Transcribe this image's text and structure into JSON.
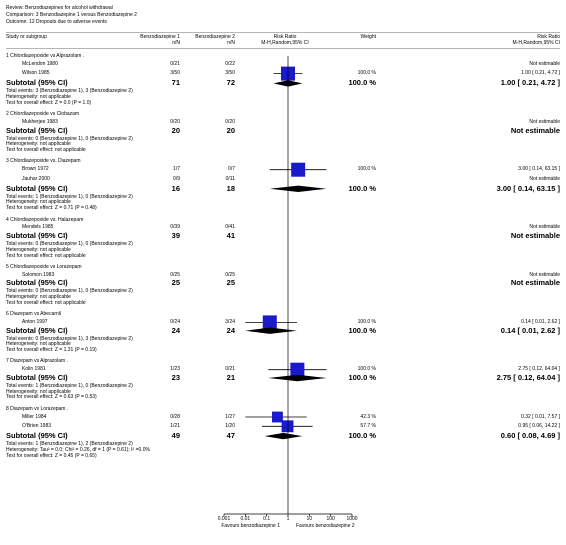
{
  "review": {
    "review_line": "Review:  Benzodiazepines for alcohol withdrawal",
    "comparison_line": "Comparison:  3 Benzodiazepine 1 versus Benzodiazepine 2",
    "outcome_line": "Outcome:  12 Dropouts due to adverse events"
  },
  "headers": {
    "study": "Study or subgroup",
    "g1": "Benzodiazepine 1",
    "g1_sub": "n/N",
    "g2": "Benzodiazepine 2",
    "g2_sub": "n/N",
    "rr": "Risk Ratio",
    "rr_sub": "M-H,Random,95% CI",
    "weight": "Weight",
    "rr2": "Risk Ratio",
    "rr2_sub": "M-H,Random,95% CI"
  },
  "colors": {
    "box": "#1a1acc",
    "line": "#000000",
    "rule": "#b5b5b5"
  },
  "groups": [
    {
      "title": "1 Chlordiazepoxide vs Alprazolam .",
      "studies": [
        {
          "name": "McLendon 1980",
          "n1": "0/21",
          "n2": "0/22",
          "weight": "",
          "rr_text": "Not estimable"
        },
        {
          "name": "Wilson 1985",
          "n1": "3/50",
          "n2": "3/50",
          "weight": "100.0 %",
          "rr_text": "1.00 [ 0.21, 4.72 ]"
        }
      ],
      "subtotal": {
        "label": "Subtotal (95% CI)",
        "n1": "71",
        "n2": "72",
        "weight": "100.0 %",
        "rr_text": "1.00 [ 0.21, 4.72 ]"
      },
      "notes": [
        "Total events: 3 (Benzodiazepine 1), 3 (Benzodiazepine 2)",
        "Heterogeneity: not applicable",
        "Test for overall effect: Z = 0.0  (P = 1.0)"
      ]
    },
    {
      "title": "2 Chlordiazepoxide vs Clobazam",
      "studies": [
        {
          "name": "Mukherjee 1983",
          "n1": "0/20",
          "n2": "0/20",
          "weight": "",
          "rr_text": "Not estimable"
        }
      ],
      "subtotal": {
        "label": "Subtotal (95% CI)",
        "n1": "20",
        "n2": "20",
        "weight": "",
        "rr_text": "Not estimable"
      },
      "notes": [
        "Total events: 0 (Benzodiazepine 1), 0 (Benzodiazepine 2)",
        "Heterogeneity: not applicable",
        "Test for overall effect: not applicable"
      ]
    },
    {
      "title": "3 Chlordiazepoxide vs. Diazepam",
      "studies": [
        {
          "name": "Brown 1972",
          "n1": "1/7",
          "n2": "0/7",
          "weight": "100.0 %",
          "rr_text": "3.00 [ 0.14, 63.15 ]"
        },
        {
          "name": "Jauhar 2000",
          "n1": "0/9",
          "n2": "0/11",
          "weight": "",
          "rr_text": "Not estimable"
        }
      ],
      "subtotal": {
        "label": "Subtotal (95% CI)",
        "n1": "16",
        "n2": "18",
        "weight": "100.0 %",
        "rr_text": "3.00 [ 0.14, 63.15 ]"
      },
      "notes": [
        "Total events: 1 (Benzodiazepine 1), 0 (Benzodiazepine 2)",
        "Heterogeneity: not applicable",
        "Test for overall effect: Z = 0.71  (P = 0.48)"
      ]
    },
    {
      "title": "4 Chlordiazepoxide vs. Halazepam",
      "studies": [
        {
          "name": "Mendels 1985",
          "n1": "0/39",
          "n2": "0/41",
          "weight": "",
          "rr_text": "Not estimable"
        }
      ],
      "subtotal": {
        "label": "Subtotal (95% CI)",
        "n1": "39",
        "n2": "41",
        "weight": "",
        "rr_text": "Not estimable"
      },
      "notes": [
        "Total events: 0 (Benzodiazepine 1), 0 (Benzodiazepine 2)",
        "Heterogeneity: not applicable",
        "Test for overall effect: not applicable"
      ]
    },
    {
      "title": "5 Chlordiazepoxide vs Lorazepam",
      "studies": [
        {
          "name": "Solomon 1983",
          "n1": "0/25",
          "n2": "0/25",
          "weight": "",
          "rr_text": "Not estimable"
        }
      ],
      "subtotal": {
        "label": "Subtotal (95% CI)",
        "n1": "25",
        "n2": "25",
        "weight": "",
        "rr_text": "Not estimable"
      },
      "notes": [
        "Total events: 0 (Benzodiazepine 1), 0 (Benzodiazepine 2)",
        "Heterogeneity: not applicable",
        "Test for overall effect: not applicable"
      ]
    },
    {
      "title": "6 Diazepam vs Abecarnil",
      "studies": [
        {
          "name": "Anton 1997",
          "n1": "0/24",
          "n2": "3/24",
          "weight": "100.0 %",
          "rr_text": "0.14 [ 0.01, 2.62 ]"
        }
      ],
      "subtotal": {
        "label": "Subtotal (95% CI)",
        "n1": "24",
        "n2": "24",
        "weight": "100.0 %",
        "rr_text": "0.14 [ 0.01, 2.62 ]"
      },
      "notes": [
        "Total events: 0 (Benzodiazepine 1), 3 (Benzodiazepine 2)",
        "Heterogeneity: not applicable",
        "Test for overall effect: Z = 1.31  (P = 0.19)"
      ]
    },
    {
      "title": "7 Diazepam vs Alprazolam .",
      "studies": [
        {
          "name": "Kolin 1981",
          "n1": "1/23",
          "n2": "0/21",
          "weight": "100.0 %",
          "rr_text": "2.75 [ 0.12, 64.04 ]"
        }
      ],
      "subtotal": {
        "label": "Subtotal (95% CI)",
        "n1": "23",
        "n2": "21",
        "weight": "100.0 %",
        "rr_text": "2.75 [ 0.12, 64.04 ]"
      },
      "notes": [
        "Total events: 1 (Benzodiazepine 1), 0 (Benzodiazepine 2)",
        "Heterogeneity: not applicable",
        "Test for overall effect: Z = 0.63  (P = 0.53)"
      ]
    },
    {
      "title": "8 Diazepam vs Lorazepam .",
      "studies": [
        {
          "name": "Miller 1984",
          "n1": "0/28",
          "n2": "1/27",
          "weight": "42.3 %",
          "rr_text": "0.32 [ 0.01, 7.57 ]"
        },
        {
          "name": "O'Brien 1983",
          "n1": "1/21",
          "n2": "1/20",
          "weight": "57.7 %",
          "rr_text": "0.95 [ 0.06, 14.22 ]"
        }
      ],
      "subtotal": {
        "label": "Subtotal (95% CI)",
        "n1": "49",
        "n2": "47",
        "weight": "100.0 %",
        "rr_text": "0.60 [ 0.08, 4.69 ]"
      },
      "notes": [
        "Total events: 1 (Benzodiazepine 1), 2 (Benzodiazepine 2)",
        "Heterogeneity: Tau² = 0.0; Chi² = 0.26, df = 1 (P = 0.61); I² =0.0%",
        "Test for overall effect: Z = 0.45  (P = 0.65)"
      ]
    }
  ],
  "axis": {
    "ticks": [
      "0.001",
      "0.01",
      "0.1",
      "1",
      "10",
      "100",
      "1000"
    ],
    "favours_left": "Favours benzodiazepine 1",
    "favours_right": "Favours benzodiazepine 2"
  },
  "chart_data": {
    "type": "forest",
    "scale": "log",
    "xlim": [
      0.001,
      1000
    ],
    "null_line": 1,
    "xlabel_left": "Favours benzodiazepine 1",
    "xlabel_right": "Favours benzodiazepine 2",
    "studies": [
      {
        "name": "McLendon 1980",
        "estimable": false
      },
      {
        "name": "Wilson 1985",
        "rr": 1.0,
        "lo": 0.21,
        "hi": 4.72,
        "weight": 100.0
      },
      {
        "name": "Mukherjee 1983",
        "estimable": false
      },
      {
        "name": "Brown 1972",
        "rr": 3.0,
        "lo": 0.14,
        "hi": 63.15,
        "weight": 100.0
      },
      {
        "name": "Jauhar 2000",
        "estimable": false
      },
      {
        "name": "Mendels 1985",
        "estimable": false
      },
      {
        "name": "Solomon 1983",
        "estimable": false
      },
      {
        "name": "Anton 1997",
        "rr": 0.14,
        "lo": 0.01,
        "hi": 2.62,
        "weight": 100.0
      },
      {
        "name": "Kolin 1981",
        "rr": 2.75,
        "lo": 0.12,
        "hi": 64.04,
        "weight": 100.0
      },
      {
        "name": "Miller 1984",
        "rr": 0.32,
        "lo": 0.01,
        "hi": 7.57,
        "weight": 42.3
      },
      {
        "name": "O'Brien 1983",
        "rr": 0.95,
        "lo": 0.06,
        "hi": 14.22,
        "weight": 57.7
      }
    ],
    "subtotals": [
      {
        "group": "1 Chlordiazepoxide vs Alprazolam .",
        "rr": 1.0,
        "lo": 0.21,
        "hi": 4.72
      },
      {
        "group": "2 Chlordiazepoxide vs Clobazam",
        "estimable": false
      },
      {
        "group": "3 Chlordiazepoxide vs. Diazepam",
        "rr": 3.0,
        "lo": 0.14,
        "hi": 63.15
      },
      {
        "group": "4 Chlordiazepoxide vs. Halazepam",
        "estimable": false
      },
      {
        "group": "5 Chlordiazepoxide vs Lorazepam",
        "estimable": false
      },
      {
        "group": "6 Diazepam vs Abecarnil",
        "rr": 0.14,
        "lo": 0.01,
        "hi": 2.62
      },
      {
        "group": "7 Diazepam vs Alprazolam .",
        "rr": 2.75,
        "lo": 0.12,
        "hi": 64.04
      },
      {
        "group": "8 Diazepam vs Lorazepam .",
        "rr": 0.6,
        "lo": 0.08,
        "hi": 4.69
      }
    ]
  }
}
